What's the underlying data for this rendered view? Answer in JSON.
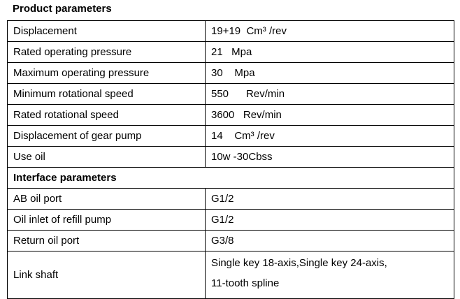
{
  "sections": [
    {
      "title": "Product parameters",
      "rows": [
        [
          "Displacement",
          "19+19  Cm³ /rev"
        ],
        [
          "Rated operating pressure",
          "21   Mpa"
        ],
        [
          "Maximum operating pressure",
          "30    Mpa"
        ],
        [
          "Minimum rotational speed",
          "550      Rev/min"
        ],
        [
          "Rated rotational speed",
          "3600   Rev/min"
        ],
        [
          "Displacement of gear pump",
          "14    Cm³ /rev"
        ],
        [
          "Use oil",
          "10w -30Cbss"
        ]
      ]
    },
    {
      "title": "Interface parameters",
      "rows": [
        [
          "AB oil port",
          "G1/2"
        ],
        [
          "Oil inlet of refill pump",
          "G1/2"
        ],
        [
          "Return oil port",
          "G3/8"
        ],
        [
          "Link shaft",
          [
            "Single key 18-axis,Single key 24-axis,",
            "11-tooth spline"
          ]
        ]
      ]
    }
  ]
}
